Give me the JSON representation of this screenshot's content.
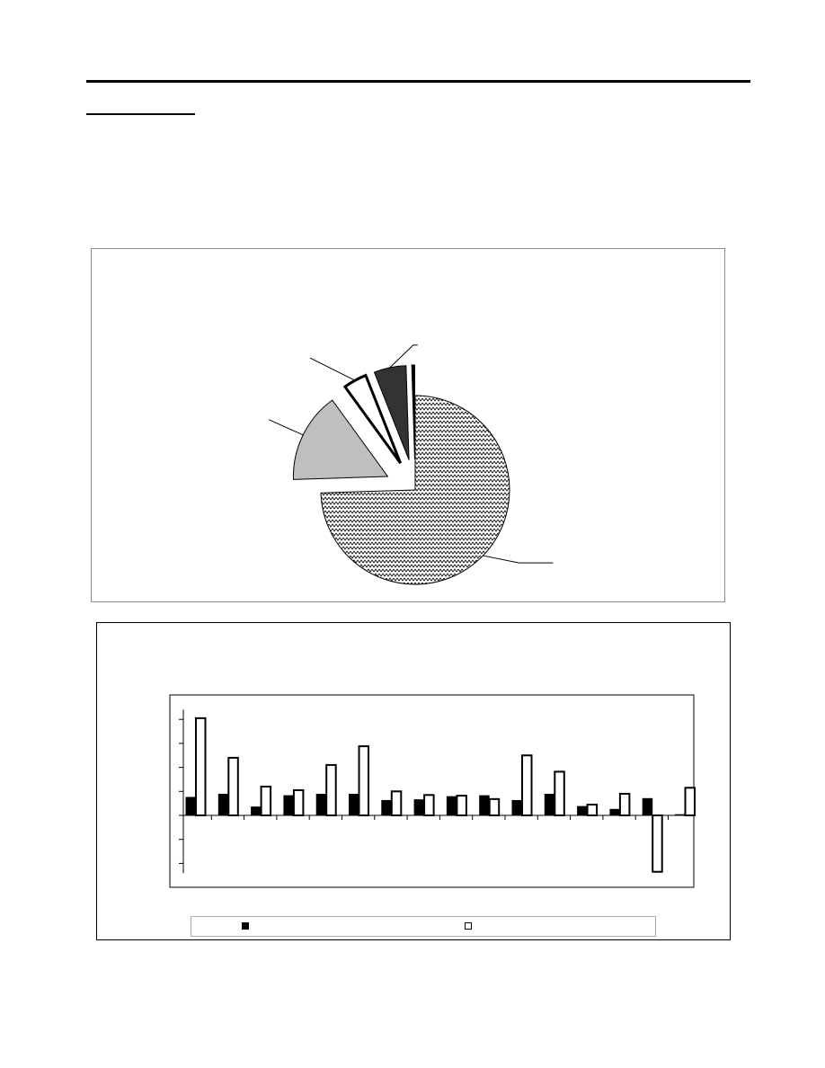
{
  "chart_data": [
    {
      "type": "pie",
      "title": "",
      "slices": [
        {
          "label": "",
          "value": 74.5,
          "fill": "zigzag-pattern",
          "exploded": false
        },
        {
          "label": "",
          "value": 15.5,
          "fill": "#bfbfbf",
          "exploded": true
        },
        {
          "label": "",
          "value": 4.0,
          "fill": "#ffffff",
          "exploded": true
        },
        {
          "label": "",
          "value": 5.5,
          "fill": "#333333",
          "exploded": true
        },
        {
          "label": "",
          "value": 0.5,
          "fill": "#000000",
          "exploded": true
        }
      ]
    },
    {
      "type": "bar",
      "title": "",
      "xlabel": "",
      "ylabel": "",
      "grid": false,
      "legend": "bottom",
      "ylim": [
        -3,
        5
      ],
      "yticks": [
        -2,
        -1,
        0,
        1,
        2,
        3,
        4
      ],
      "categories": [
        "",
        "",
        "",
        "",
        "",
        "",
        "",
        "",
        "",
        "",
        "",
        "",
        "",
        "",
        "",
        ""
      ],
      "series": [
        {
          "label": "",
          "fill": "#000000",
          "values": [
            0.75,
            0.88,
            0.35,
            0.82,
            0.88,
            0.88,
            0.62,
            0.65,
            0.78,
            0.82,
            0.62,
            0.88,
            0.37,
            0.25,
            0.7,
            0.03
          ]
        },
        {
          "label": "",
          "fill": "#ffffff",
          "values": [
            4.05,
            2.4,
            1.2,
            1.05,
            2.1,
            2.88,
            1.0,
            0.85,
            0.82,
            0.68,
            2.5,
            1.82,
            0.45,
            0.9,
            -2.35,
            1.15
          ]
        }
      ]
    }
  ]
}
